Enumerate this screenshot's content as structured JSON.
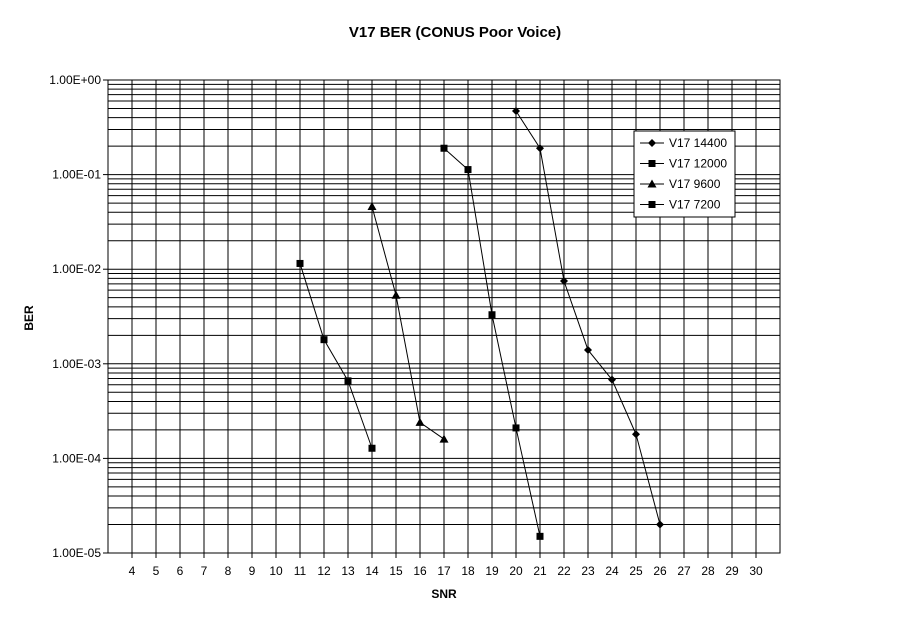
{
  "chart_data": {
    "type": "line",
    "title": "V17 BER (CONUS Poor Voice)",
    "xlabel": "SNR",
    "ylabel": "BER",
    "xlim": [
      3,
      31
    ],
    "ylim": [
      1e-05,
      1
    ],
    "y_scale": "log",
    "grid": true,
    "legend_position": "top-right",
    "x_tick_labels": [
      "4",
      "5",
      "6",
      "7",
      "8",
      "9",
      "10",
      "11",
      "12",
      "13",
      "14",
      "15",
      "16",
      "17",
      "18",
      "19",
      "20",
      "21",
      "22",
      "23",
      "24",
      "25",
      "26",
      "27",
      "28",
      "29",
      "30"
    ],
    "y_tick_labels": [
      "1.00E+00",
      "1.00E-01",
      "1.00E-02",
      "1.00E-03",
      "1.00E-04",
      "1.00E-05"
    ],
    "series": [
      {
        "name": "V17 14400",
        "marker": "diamond",
        "color": "#000000",
        "x": [
          20,
          21,
          22,
          23,
          24,
          25,
          26
        ],
        "y": [
          0.47,
          0.19,
          0.0075,
          0.0014,
          0.00068,
          0.00018,
          2e-05
        ]
      },
      {
        "name": "V17 12000",
        "marker": "square",
        "color": "#000000",
        "x": [
          17,
          18,
          19,
          20,
          21
        ],
        "y": [
          0.19,
          0.113,
          0.0033,
          0.00021,
          1.5e-05
        ]
      },
      {
        "name": "V17 9600",
        "marker": "triangle",
        "color": "#000000",
        "x": [
          14,
          15,
          16,
          17
        ],
        "y": [
          0.046,
          0.0053,
          0.00024,
          0.00016
        ]
      },
      {
        "name": "V17 7200",
        "marker": "square",
        "color": "#000000",
        "x": [
          11,
          12,
          13,
          14
        ],
        "y": [
          0.0115,
          0.0018,
          0.00066,
          0.000128
        ]
      }
    ]
  }
}
